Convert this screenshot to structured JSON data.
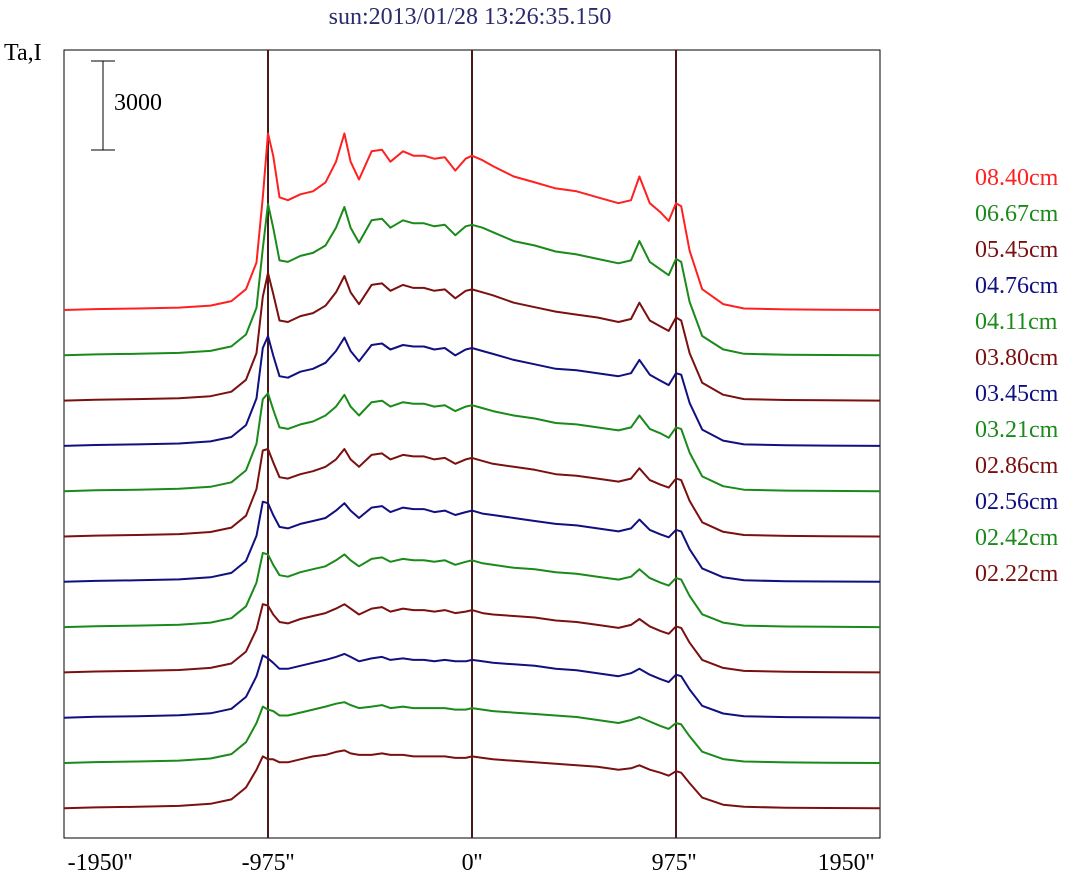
{
  "title": "sun:2013/01/28 13:26:35.150",
  "ylabel": "Ta,I",
  "scale_bar_label": "3000",
  "chart_data": {
    "type": "line",
    "title": "sun:2013/01/28 13:26:35.150",
    "xlabel": "",
    "ylabel": "Ta,I",
    "xlim": [
      -1950,
      1950
    ],
    "x_ticks": [
      -1950,
      -975,
      0,
      975,
      1950
    ],
    "x_tick_labels": [
      "-1950''",
      "-975''",
      "0''",
      "975''",
      "1950''"
    ],
    "vertical_markers": [
      -975,
      0,
      975
    ],
    "scale_bar": 3000,
    "grid": false,
    "legend_position": "right",
    "x": [
      -1950,
      -1800,
      -1600,
      -1400,
      -1250,
      -1150,
      -1080,
      -1030,
      -1000,
      -975,
      -950,
      -920,
      -880,
      -820,
      -760,
      -700,
      -650,
      -610,
      -580,
      -540,
      -480,
      -430,
      -390,
      -330,
      -280,
      -230,
      -180,
      -130,
      -80,
      -30,
      0,
      50,
      100,
      200,
      300,
      400,
      500,
      600,
      700,
      760,
      800,
      850,
      900,
      940,
      975,
      1000,
      1040,
      1100,
      1200,
      1300,
      1500,
      1700,
      1950
    ],
    "series": [
      {
        "name": "08.40cm",
        "color": "#ff2020",
        "values": [
          0,
          30,
          50,
          80,
          150,
          300,
          700,
          1600,
          3800,
          5950,
          5200,
          3800,
          3700,
          3900,
          4000,
          4300,
          5000,
          5950,
          5000,
          4400,
          5350,
          5400,
          5000,
          5350,
          5200,
          5200,
          5100,
          5150,
          4700,
          5100,
          5200,
          5050,
          4850,
          4500,
          4300,
          4100,
          4000,
          3800,
          3600,
          3700,
          4500,
          3600,
          3300,
          3000,
          3600,
          3500,
          2000,
          700,
          200,
          50,
          20,
          10,
          0
        ]
      },
      {
        "name": "06.67cm",
        "color": "#1a8a1a",
        "values": [
          0,
          30,
          50,
          80,
          150,
          300,
          700,
          1600,
          3600,
          5100,
          4300,
          3200,
          3150,
          3350,
          3450,
          3700,
          4300,
          5000,
          4300,
          3800,
          4550,
          4600,
          4300,
          4550,
          4450,
          4450,
          4350,
          4400,
          4050,
          4350,
          4400,
          4300,
          4150,
          3850,
          3700,
          3500,
          3400,
          3250,
          3100,
          3200,
          3850,
          3150,
          2900,
          2700,
          3250,
          3150,
          1800,
          650,
          200,
          50,
          20,
          10,
          0
        ]
      },
      {
        "name": "05.45cm",
        "color": "#7a1010",
        "values": [
          0,
          30,
          50,
          80,
          150,
          300,
          700,
          1600,
          3500,
          4300,
          3600,
          2700,
          2650,
          2850,
          2950,
          3200,
          3650,
          4200,
          3650,
          3250,
          3900,
          3950,
          3700,
          3900,
          3800,
          3800,
          3700,
          3750,
          3450,
          3700,
          3750,
          3650,
          3550,
          3300,
          3150,
          3000,
          2900,
          2800,
          2650,
          2750,
          3300,
          2700,
          2500,
          2350,
          2800,
          2700,
          1600,
          600,
          200,
          50,
          20,
          10,
          0
        ]
      },
      {
        "name": "04.76cm",
        "color": "#101080",
        "values": [
          0,
          30,
          50,
          80,
          150,
          300,
          700,
          1600,
          3300,
          3700,
          3050,
          2350,
          2300,
          2500,
          2600,
          2800,
          3200,
          3650,
          3200,
          2850,
          3400,
          3450,
          3250,
          3400,
          3350,
          3350,
          3250,
          3300,
          3050,
          3250,
          3300,
          3200,
          3100,
          2900,
          2750,
          2600,
          2550,
          2450,
          2350,
          2450,
          2900,
          2400,
          2200,
          2050,
          2450,
          2400,
          1450,
          550,
          180,
          50,
          20,
          10,
          0
        ]
      },
      {
        "name": "04.11cm",
        "color": "#1a8a1a",
        "values": [
          0,
          30,
          50,
          80,
          150,
          300,
          700,
          1600,
          3100,
          3300,
          2750,
          2150,
          2100,
          2250,
          2350,
          2550,
          2850,
          3250,
          2850,
          2550,
          3000,
          3050,
          2850,
          3000,
          2950,
          2950,
          2850,
          2900,
          2700,
          2850,
          2900,
          2800,
          2700,
          2550,
          2450,
          2300,
          2250,
          2150,
          2050,
          2150,
          2550,
          2100,
          1950,
          1800,
          2150,
          2100,
          1300,
          500,
          170,
          50,
          20,
          10,
          0
        ]
      },
      {
        "name": "03.80cm",
        "color": "#7a1010",
        "values": [
          0,
          30,
          50,
          80,
          150,
          300,
          700,
          1600,
          2900,
          2950,
          2500,
          2000,
          1950,
          2100,
          2200,
          2350,
          2600,
          2950,
          2600,
          2350,
          2750,
          2800,
          2600,
          2750,
          2700,
          2700,
          2600,
          2650,
          2450,
          2600,
          2650,
          2550,
          2450,
          2350,
          2250,
          2100,
          2050,
          1950,
          1850,
          1950,
          2300,
          1900,
          1750,
          1650,
          1950,
          1900,
          1200,
          480,
          160,
          50,
          20,
          10,
          0
        ]
      },
      {
        "name": "03.45cm",
        "color": "#101080",
        "values": [
          0,
          30,
          50,
          80,
          150,
          300,
          700,
          1550,
          2700,
          2650,
          2250,
          1850,
          1800,
          1950,
          2050,
          2150,
          2400,
          2650,
          2400,
          2150,
          2500,
          2550,
          2350,
          2500,
          2450,
          2450,
          2350,
          2400,
          2250,
          2350,
          2400,
          2300,
          2250,
          2150,
          2050,
          1950,
          1900,
          1800,
          1700,
          1800,
          2100,
          1750,
          1600,
          1500,
          1750,
          1700,
          1100,
          450,
          150,
          50,
          20,
          10,
          0
        ]
      },
      {
        "name": "03.21cm",
        "color": "#1a8a1a",
        "values": [
          0,
          30,
          50,
          80,
          150,
          300,
          700,
          1500,
          2500,
          2450,
          2100,
          1750,
          1700,
          1850,
          1950,
          2050,
          2250,
          2450,
          2250,
          2050,
          2300,
          2350,
          2200,
          2300,
          2250,
          2250,
          2200,
          2250,
          2100,
          2200,
          2250,
          2150,
          2100,
          2000,
          1950,
          1850,
          1800,
          1700,
          1600,
          1700,
          1950,
          1650,
          1500,
          1400,
          1650,
          1600,
          1050,
          430,
          150,
          50,
          20,
          10,
          0
        ]
      },
      {
        "name": "02.86cm",
        "color": "#7a1010",
        "values": [
          0,
          30,
          50,
          80,
          150,
          300,
          700,
          1450,
          2300,
          2250,
          1950,
          1700,
          1650,
          1800,
          1900,
          2000,
          2150,
          2300,
          2150,
          1950,
          2150,
          2200,
          2050,
          2150,
          2100,
          2100,
          2050,
          2100,
          2000,
          2050,
          2100,
          2000,
          1950,
          1900,
          1850,
          1750,
          1700,
          1600,
          1500,
          1600,
          1800,
          1550,
          1400,
          1300,
          1550,
          1500,
          1000,
          420,
          150,
          50,
          20,
          10,
          0
        ]
      },
      {
        "name": "02.56cm",
        "color": "#101080",
        "values": [
          0,
          30,
          50,
          80,
          150,
          300,
          700,
          1400,
          2100,
          2000,
          1850,
          1650,
          1650,
          1750,
          1850,
          1950,
          2050,
          2150,
          2050,
          1900,
          2000,
          2050,
          1950,
          2000,
          1950,
          1950,
          1900,
          1950,
          1900,
          1900,
          1950,
          1900,
          1850,
          1800,
          1750,
          1650,
          1600,
          1500,
          1400,
          1500,
          1650,
          1450,
          1300,
          1200,
          1450,
          1400,
          950,
          400,
          140,
          50,
          20,
          10,
          0
        ]
      },
      {
        "name": "02.42cm",
        "color": "#1a8a1a",
        "values": [
          0,
          30,
          50,
          80,
          150,
          300,
          700,
          1350,
          1900,
          1800,
          1750,
          1600,
          1600,
          1700,
          1800,
          1900,
          2000,
          2050,
          1950,
          1850,
          1900,
          1950,
          1850,
          1900,
          1850,
          1850,
          1850,
          1850,
          1800,
          1800,
          1850,
          1800,
          1750,
          1700,
          1650,
          1600,
          1550,
          1450,
          1350,
          1450,
          1550,
          1400,
          1250,
          1150,
          1350,
          1300,
          900,
          380,
          130,
          50,
          20,
          10,
          0
        ]
      },
      {
        "name": "02.22cm",
        "color": "#7a1010",
        "values": [
          0,
          30,
          50,
          80,
          150,
          300,
          700,
          1300,
          1750,
          1650,
          1650,
          1550,
          1550,
          1650,
          1750,
          1800,
          1900,
          1950,
          1850,
          1800,
          1800,
          1850,
          1800,
          1800,
          1750,
          1750,
          1750,
          1750,
          1700,
          1700,
          1750,
          1700,
          1650,
          1600,
          1550,
          1500,
          1450,
          1400,
          1300,
          1350,
          1450,
          1300,
          1200,
          1100,
          1250,
          1200,
          850,
          360,
          120,
          50,
          20,
          10,
          0
        ]
      }
    ]
  }
}
